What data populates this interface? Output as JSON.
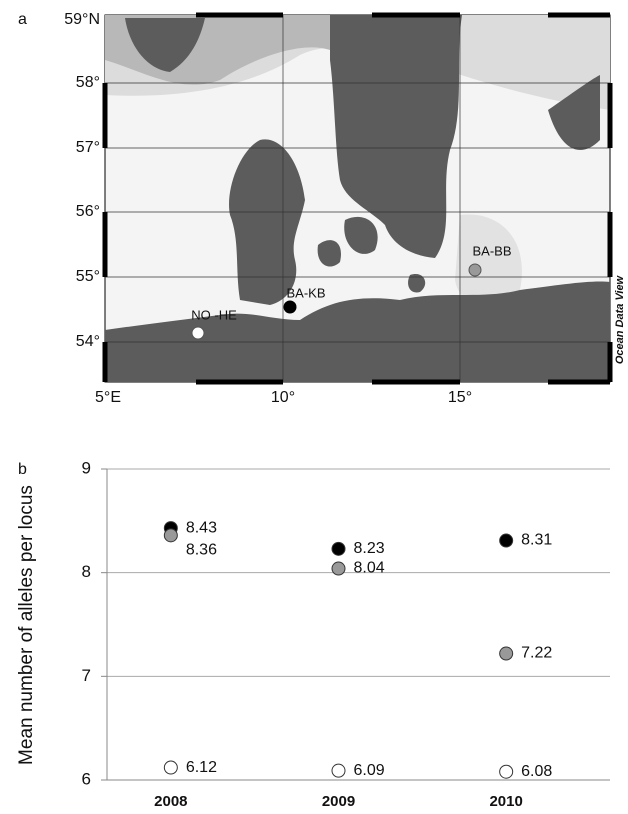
{
  "map": {
    "panel_label": "a",
    "lat_labels": [
      "59°N",
      "58°",
      "57°",
      "56°",
      "55°",
      "54°"
    ],
    "lon_labels": [
      "5°E",
      "10°",
      "15°"
    ],
    "sites": [
      {
        "label": "NO -HE"
      },
      {
        "label": "BA-KB"
      },
      {
        "label": "BA-BB"
      }
    ],
    "credit": "Ocean Data View"
  },
  "chart_data": {
    "type": "scatter",
    "panel_label": "b",
    "y_label": "Mean number of alleles per locus",
    "categories": [
      "2008",
      "2009",
      "2010"
    ],
    "series": [
      {
        "color": "#000000",
        "values": [
          8.43,
          8.23,
          8.31
        ]
      },
      {
        "color": "#999999",
        "values": [
          8.36,
          8.04,
          7.22
        ]
      },
      {
        "color": "#ffffff",
        "values": [
          6.12,
          6.09,
          6.08
        ]
      }
    ],
    "ylim": [
      6,
      9
    ],
    "yticks": [
      6,
      7,
      8,
      9
    ],
    "grid": true
  }
}
